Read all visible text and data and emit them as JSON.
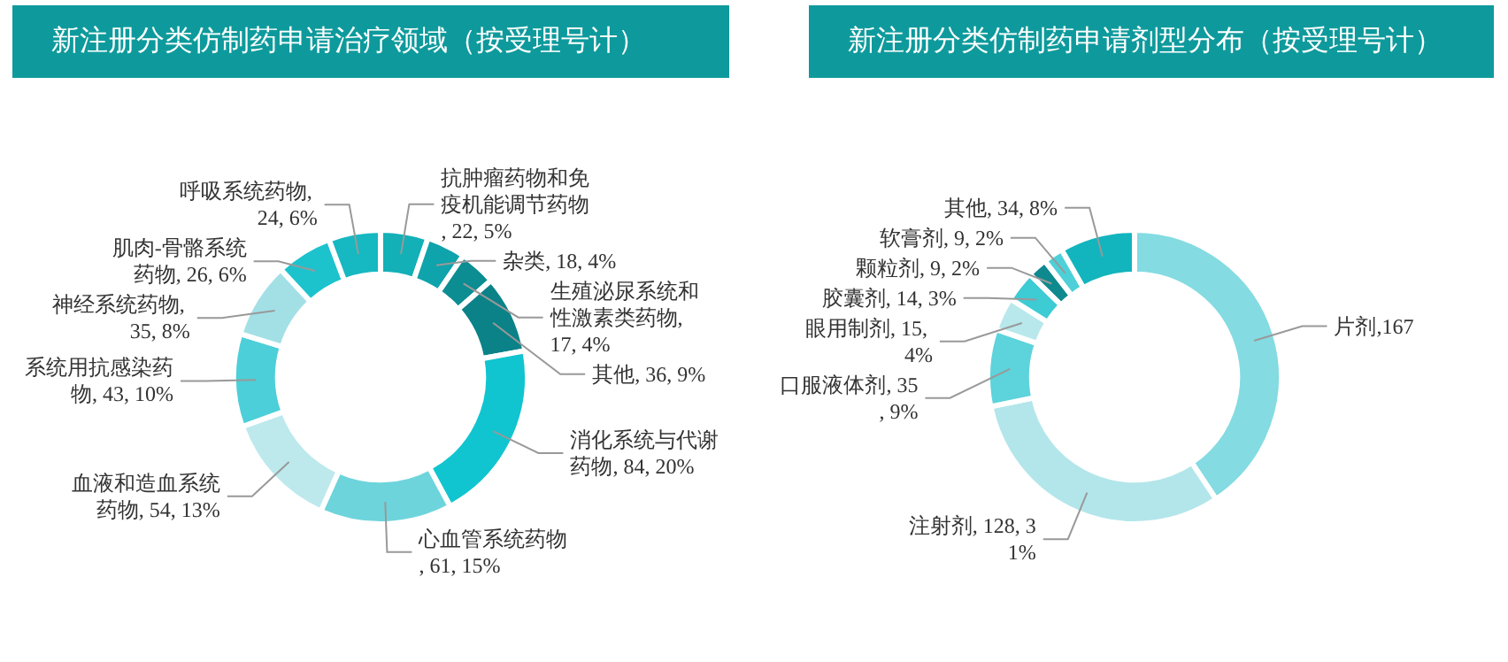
{
  "chart_data": [
    {
      "type": "donut",
      "title": "新注册分类仿制药申请治疗领域（按受理号计）",
      "categories": [
        "抗肿瘤药物和免疫机能调节药物",
        "杂类",
        "生殖泌尿系统和性激素类药物",
        "其他",
        "消化系统与代谢药物",
        "心血管系统药物",
        "血液和造血系统药物",
        "系统用抗感染药物",
        "神经系统药物",
        "肌肉-骨骼系统药物",
        "呼吸系统药物"
      ],
      "values": [
        22,
        18,
        17,
        36,
        84,
        61,
        54,
        43,
        35,
        26,
        24
      ],
      "value_labels": [
        ", 22, 5%",
        ", 18, 4%",
        ", 17, 4%",
        ", 36, 9%",
        ", 84, 20%",
        ", 61, 15%",
        ", 54, 13%",
        ", 43, 10%",
        ", 35, 8%",
        ", 26, 6%",
        ", 24, 6%"
      ],
      "colors": [
        "#13b0b8",
        "#0fa3ab",
        "#0b8d92",
        "#0a8288",
        "#10c5cf",
        "#6dd4dc",
        "#bde9ed",
        "#4ccfd8",
        "#a2e0e6",
        "#1cc3cd",
        "#16b8c1"
      ]
    },
    {
      "type": "donut",
      "title": "新注册分类仿制药申请剂型分布（按受理号计）",
      "categories": [
        "片剂",
        "注射剂",
        "口服液体剂",
        "眼用制剂",
        "胶囊剂",
        "颗粒剂",
        "软膏剂",
        "其他"
      ],
      "values": [
        167,
        128,
        35,
        15,
        14,
        9,
        9,
        34
      ],
      "value_labels": [
        ",167",
        ", 128, 31%",
        ", 35, 9%",
        ", 15, 4%",
        ", 14, 3%",
        ", 9, 2%",
        ", 9, 2%",
        ", 34, 8%"
      ],
      "colors": [
        "#84dbe2",
        "#b3e6ea",
        "#5dd3db",
        "#b8e8ec",
        "#3dcbd4",
        "#0e8a8f",
        "#4ed0d8",
        "#12b5bd"
      ]
    }
  ]
}
